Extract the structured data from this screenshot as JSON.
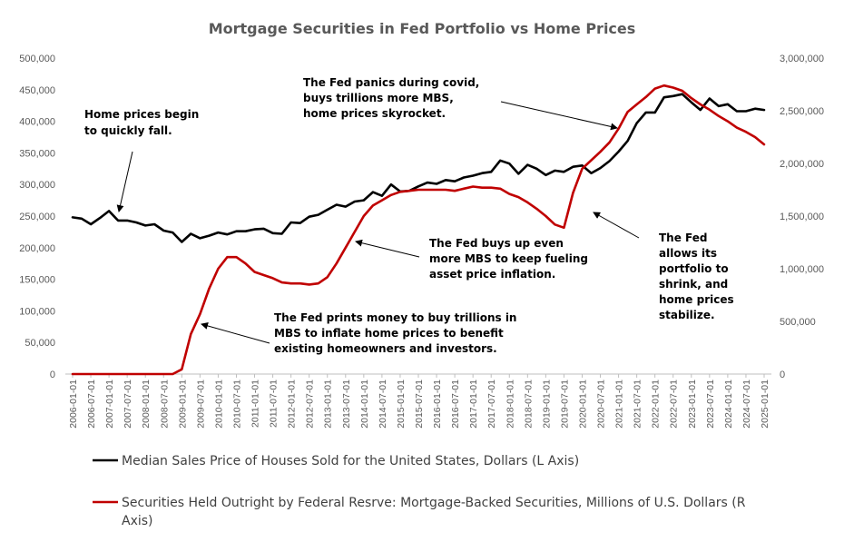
{
  "chart_data": {
    "type": "line",
    "title": "Mortgage Securities in Fed Portfolio vs Home Prices",
    "left_axis": {
      "ylim": [
        0,
        500000
      ],
      "ticks": [
        "0",
        "50,000",
        "100,000",
        "150,000",
        "200,000",
        "250,000",
        "300,000",
        "350,000",
        "400,000",
        "450,000",
        "500,000"
      ]
    },
    "right_axis": {
      "ylim": [
        0,
        3000000
      ],
      "ticks": [
        "0",
        "500,000",
        "1,000,000",
        "1,500,000",
        "2,000,000",
        "2,500,000",
        "3,000,000"
      ]
    },
    "x_tick_labels": [
      "2006-01-01",
      "2006-07-01",
      "2007-01-01",
      "2007-07-01",
      "2008-01-01",
      "2008-07-01",
      "2009-01-01",
      "2009-07-01",
      "2010-01-01",
      "2010-07-01",
      "2011-01-01",
      "2011-07-01",
      "2012-01-01",
      "2012-07-01",
      "2013-01-01",
      "2013-07-01",
      "2014-01-01",
      "2014-07-01",
      "2015-01-01",
      "2015-07-01",
      "2016-01-01",
      "2016-07-01",
      "2017-01-01",
      "2017-07-01",
      "2018-01-01",
      "2018-07-01",
      "2019-01-01",
      "2019-07-01",
      "2020-01-01",
      "2020-07-01",
      "2021-01-01",
      "2021-07-01",
      "2022-01-01",
      "2022-07-01",
      "2023-01-01",
      "2023-07-01",
      "2024-01-01",
      "2024-07-01",
      "2025-01-01"
    ],
    "series": [
      {
        "name": "Median Sales Price of Houses Sold for the United States, Dollars (L Axis)",
        "axis": "left",
        "color": "#000000",
        "values": [
          248000,
          246000,
          237000,
          247000,
          258000,
          243000,
          243000,
          240000,
          235000,
          237000,
          227000,
          224000,
          209000,
          222000,
          215000,
          219000,
          224000,
          221000,
          226000,
          226000,
          229000,
          230000,
          223000,
          222000,
          240000,
          239000,
          249000,
          252000,
          260000,
          268000,
          265000,
          273000,
          275000,
          288000,
          282000,
          300000,
          289000,
          290000,
          297000,
          303000,
          301000,
          307000,
          305000,
          311000,
          314000,
          318000,
          320000,
          338000,
          333000,
          317000,
          331000,
          325000,
          315000,
          322000,
          320000,
          328000,
          330000,
          318000,
          326000,
          337000,
          352000,
          369000,
          397000,
          414000,
          414000,
          438000,
          440000,
          443000,
          430000,
          418000,
          436000,
          424000,
          427000,
          416000,
          416000,
          420000,
          418000
        ],
        "x_start": "2006-01-01",
        "step": "quarterly"
      },
      {
        "name": "Securities Held Outright by Federal Resrve: Mortgage-Backed Securities, Millions of U.S. Dollars (R Axis)",
        "axis": "right",
        "color": "#c00000",
        "values": [
          0,
          0,
          0,
          0,
          0,
          0,
          0,
          0,
          0,
          0,
          0,
          0,
          45000,
          380000,
          570000,
          810000,
          1000000,
          1110000,
          1110000,
          1050000,
          970000,
          940000,
          910000,
          870000,
          860000,
          860000,
          850000,
          860000,
          920000,
          1050000,
          1200000,
          1350000,
          1500000,
          1600000,
          1650000,
          1700000,
          1730000,
          1740000,
          1750000,
          1750000,
          1750000,
          1750000,
          1740000,
          1760000,
          1780000,
          1770000,
          1770000,
          1760000,
          1710000,
          1680000,
          1630000,
          1570000,
          1500000,
          1420000,
          1390000,
          1720000,
          1950000,
          2030000,
          2110000,
          2200000,
          2330000,
          2490000,
          2560000,
          2630000,
          2710000,
          2740000,
          2720000,
          2690000,
          2620000,
          2560000,
          2510000,
          2450000,
          2400000,
          2340000,
          2300000,
          2250000,
          2180000
        ],
        "x_start": "2006-01-01",
        "step": "quarterly"
      }
    ],
    "annotations": [
      {
        "id": "home-fall",
        "lines": [
          "Home prices begin",
          "to quickly fall."
        ]
      },
      {
        "id": "fed-prints",
        "lines": [
          "The Fed prints money to buy trillions in",
          "MBS to inflate home prices to benefit",
          "existing homeowners and investors."
        ]
      },
      {
        "id": "fed-buys",
        "lines": [
          "The Fed buys up even",
          "more MBS to keep fueling",
          "asset price inflation."
        ]
      },
      {
        "id": "fed-covid",
        "lines": [
          "The Fed panics during covid,",
          "buys trillions more MBS,",
          "home prices skyrocket."
        ]
      },
      {
        "id": "fed-shrink",
        "lines": [
          "The Fed",
          "allows its",
          "portfolio to",
          "shrink, and",
          "home prices",
          "stabilize."
        ]
      }
    ],
    "legend": {
      "position": "bottom",
      "items": [
        {
          "lines": [
            "Median Sales Price of Houses Sold for the United States, Dollars (L Axis)"
          ],
          "color": "#000000"
        },
        {
          "lines": [
            "Securities Held Outright by Federal Resrve: Mortgage-Backed Securities, Millions of U.S. Dollars (R",
            "Axis)"
          ],
          "color": "#c00000"
        }
      ]
    }
  }
}
